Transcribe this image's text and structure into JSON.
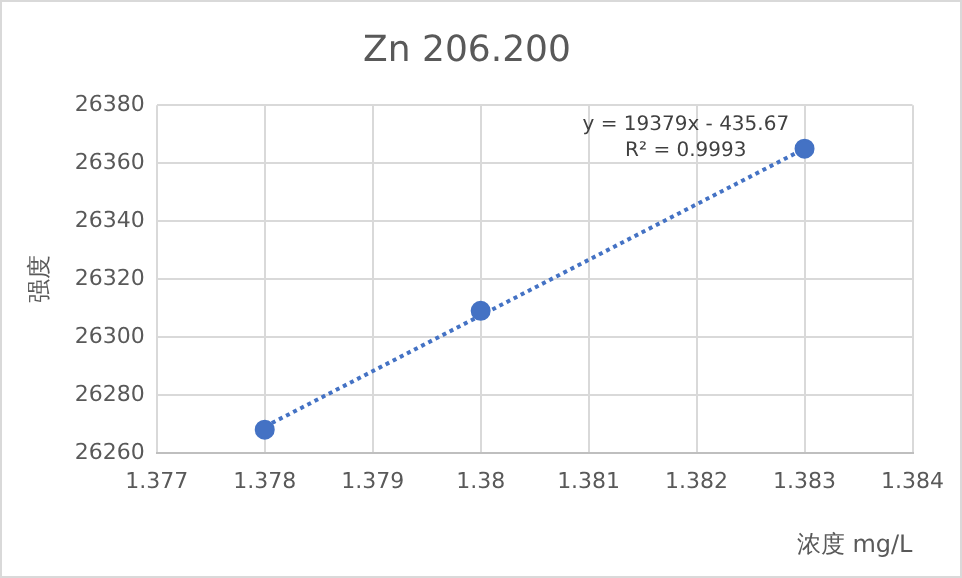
{
  "chart_data": {
    "type": "scatter",
    "title": "Zn 206.200",
    "xlabel": "浓度 mg/L",
    "ylabel": "强度",
    "series": [
      {
        "color": "#4472c4",
        "x": [
          1.378,
          1.38,
          1.383
        ],
        "values": [
          26268,
          26309,
          26365
        ],
        "marker": "circle"
      },
      {
        "type": "line",
        "color": "#4472c4",
        "x": [
          1.378,
          1.383
        ],
        "values": [
          26269,
          26365
        ],
        "marker": "none",
        "line_style": "dotted"
      }
    ],
    "xlim": [
      1.377,
      1.384
    ],
    "xticks": [
      1.377,
      1.378,
      1.379,
      1.38,
      1.381,
      1.382,
      1.383,
      1.384
    ],
    "ylim": [
      26260,
      26380
    ],
    "yticks": [
      26260,
      26280,
      26300,
      26320,
      26340,
      26360,
      26380
    ],
    "grid": true,
    "legend": false,
    "annotations": [
      "y = 19379x - 435.67",
      "R² = 0.9993"
    ]
  }
}
